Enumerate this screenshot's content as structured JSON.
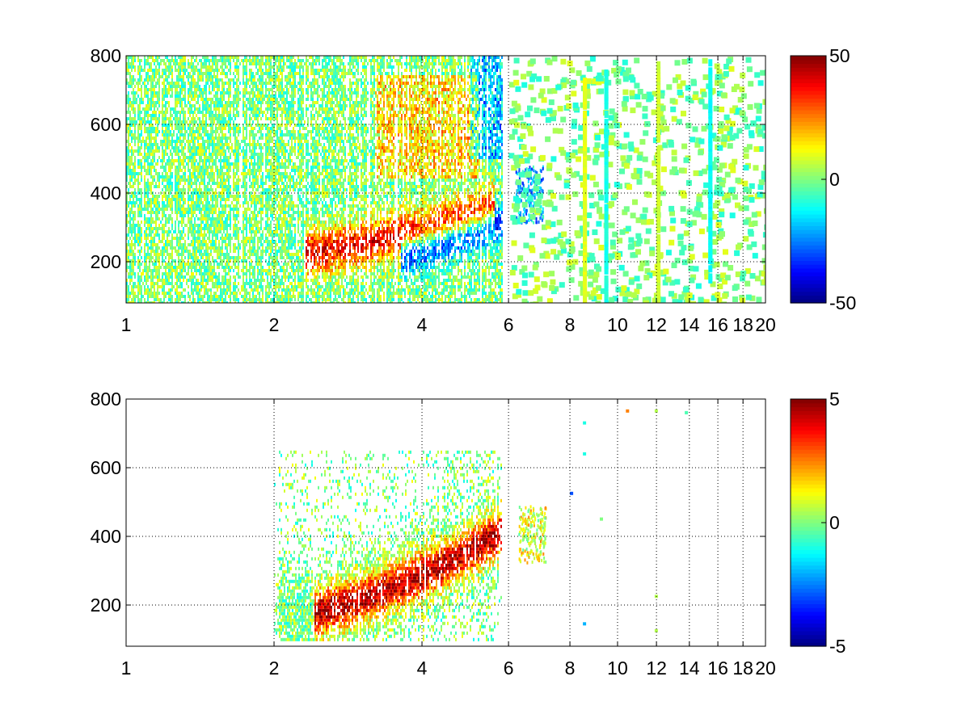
{
  "figure": {
    "background": "#ffffff",
    "colormap": "jet"
  },
  "chart_data": [
    {
      "type": "heatmap",
      "title": "",
      "xlabel": "",
      "ylabel": "",
      "xlim": [
        1,
        20
      ],
      "ylim": [
        80,
        800
      ],
      "xscale": "log",
      "xticks": [
        1,
        2,
        4,
        6,
        8,
        10,
        12,
        14,
        16,
        18,
        20
      ],
      "xtick_labels": [
        "1",
        "2",
        "4",
        "6",
        "8",
        "10",
        "12",
        "14",
        "16",
        "18",
        "20"
      ],
      "yticks": [
        200,
        400,
        600,
        800
      ],
      "ytick_labels": [
        "200",
        "400",
        "600",
        "800"
      ],
      "grid": true,
      "colorbar": {
        "range": [
          -50,
          50
        ],
        "ticks": [
          -50,
          0,
          50
        ],
        "tick_labels": [
          "-50",
          "0",
          "50"
        ]
      },
      "pattern": {
        "dense_band": {
          "x_range": [
            1.0,
            5.8
          ]
        },
        "ridge_positive": {
          "x_start": 2.3,
          "x_end": 5.6,
          "y_start": 230,
          "y_end": 360,
          "value": 38
        },
        "ridge_negative": {
          "x_start": 3.6,
          "x_end": 5.8,
          "y_start": 220,
          "y_end": 320,
          "value": -40
        },
        "upper_positive": {
          "x_range": [
            3.2,
            5.2
          ],
          "y_range": [
            450,
            750
          ],
          "value": 20
        },
        "upper_negative": {
          "x_range": [
            5.0,
            5.8
          ],
          "y_range": [
            500,
            800
          ],
          "value": -25
        },
        "blob": {
          "x": 6.6,
          "y": 400,
          "value": -20
        },
        "sparse_region": {
          "x_range": [
            6.0,
            20.0
          ],
          "values_near": [
            -10,
            10
          ]
        },
        "streaks": [
          {
            "x": 9.4,
            "y_range": [
              80,
              760
            ],
            "value": -10
          },
          {
            "x": 12.0,
            "y_range": [
              80,
              800
            ],
            "value": 8
          },
          {
            "x": 15.3,
            "y_range": [
              150,
              790
            ],
            "value": -12
          },
          {
            "x": 8.5,
            "y_range": [
              80,
              730
            ],
            "value": 10
          }
        ]
      }
    },
    {
      "type": "heatmap",
      "title": "",
      "xlabel": "",
      "ylabel": "",
      "xlim": [
        1,
        20
      ],
      "ylim": [
        80,
        800
      ],
      "xscale": "log",
      "xticks": [
        1,
        2,
        4,
        6,
        8,
        10,
        12,
        14,
        16,
        18,
        20
      ],
      "xtick_labels": [
        "1",
        "2",
        "4",
        "6",
        "8",
        "10",
        "12",
        "14",
        "16",
        "18",
        "20"
      ],
      "yticks": [
        200,
        400,
        600,
        800
      ],
      "ytick_labels": [
        "200",
        "400",
        "600",
        "800"
      ],
      "grid": true,
      "colorbar": {
        "range": [
          -5,
          5
        ],
        "ticks": [
          -5,
          0,
          5
        ],
        "tick_labels": [
          "-5",
          "0",
          "5"
        ]
      },
      "pattern": {
        "dense_band": {
          "x_range": [
            2.0,
            5.8
          ],
          "y_range": [
            100,
            650
          ]
        },
        "ridge_positive": {
          "x_start": 2.4,
          "x_end": 5.8,
          "y_start": 180,
          "y_end": 420,
          "value": 4.5
        },
        "blob": {
          "x": 6.7,
          "y": 410,
          "value": 1
        },
        "scattered_points": [
          {
            "x": 10.4,
            "y": 770,
            "value": 2.5
          },
          {
            "x": 11.9,
            "y": 770,
            "value": 0.5
          },
          {
            "x": 13.7,
            "y": 765,
            "value": -0.5
          },
          {
            "x": 8.5,
            "y": 735,
            "value": -1
          },
          {
            "x": 8.5,
            "y": 645,
            "value": -1
          },
          {
            "x": 9.2,
            "y": 455,
            "value": 0
          },
          {
            "x": 8.0,
            "y": 530,
            "value": -3
          },
          {
            "x": 11.9,
            "y": 230,
            "value": 0.5
          },
          {
            "x": 11.9,
            "y": 130,
            "value": 0.5
          },
          {
            "x": 8.5,
            "y": 150,
            "value": -2
          }
        ]
      }
    }
  ]
}
